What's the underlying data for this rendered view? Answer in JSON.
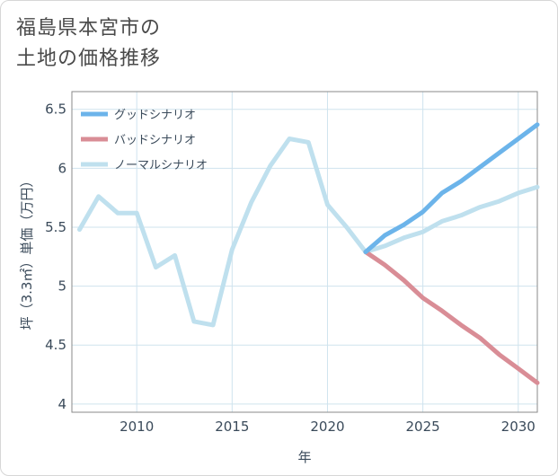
{
  "title": "福島県本宮市の\n土地の価格推移",
  "chart_data": {
    "type": "line",
    "xlabel": "年",
    "ylabel": "坪（3.3㎡）単価（万円）",
    "xlim": [
      2006.6,
      2031
    ],
    "ylim": [
      3.93,
      6.65
    ],
    "xticks": [
      2010,
      2015,
      2020,
      2025,
      2030
    ],
    "yticks": [
      4,
      4.5,
      5,
      5.5,
      6,
      6.5
    ],
    "ytick_labels": [
      "4",
      "4.5",
      "5",
      "5.5",
      "6",
      "6.5"
    ],
    "grid": true,
    "legend_position": "top-left",
    "series": [
      {
        "name": "グッドシナリオ",
        "color": "#6cb4ea",
        "x": [
          2022,
          2023,
          2024,
          2025,
          2026,
          2027,
          2028,
          2029,
          2030,
          2031
        ],
        "y": [
          5.29,
          5.43,
          5.52,
          5.63,
          5.79,
          5.89,
          6.01,
          6.13,
          6.25,
          6.37
        ]
      },
      {
        "name": "バッドシナリオ",
        "color": "#d98d96",
        "x": [
          2022,
          2023,
          2024,
          2025,
          2026,
          2027,
          2028,
          2029,
          2030,
          2031
        ],
        "y": [
          5.29,
          5.18,
          5.05,
          4.9,
          4.79,
          4.67,
          4.56,
          4.42,
          4.3,
          4.18
        ]
      },
      {
        "name": "ノーマルシナリオ",
        "color": "#bfe0ee",
        "x": [
          2007,
          2008,
          2009,
          2010,
          2011,
          2012,
          2013,
          2014,
          2015,
          2016,
          2017,
          2018,
          2019,
          2020,
          2021,
          2022,
          2023,
          2024,
          2025,
          2026,
          2027,
          2028,
          2029,
          2030,
          2031
        ],
        "y": [
          5.48,
          5.76,
          5.62,
          5.62,
          5.16,
          5.26,
          4.7,
          4.67,
          5.31,
          5.71,
          6.02,
          6.25,
          6.22,
          5.69,
          5.5,
          5.29,
          5.34,
          5.41,
          5.46,
          5.55,
          5.6,
          5.67,
          5.72,
          5.79,
          5.84
        ]
      }
    ]
  }
}
